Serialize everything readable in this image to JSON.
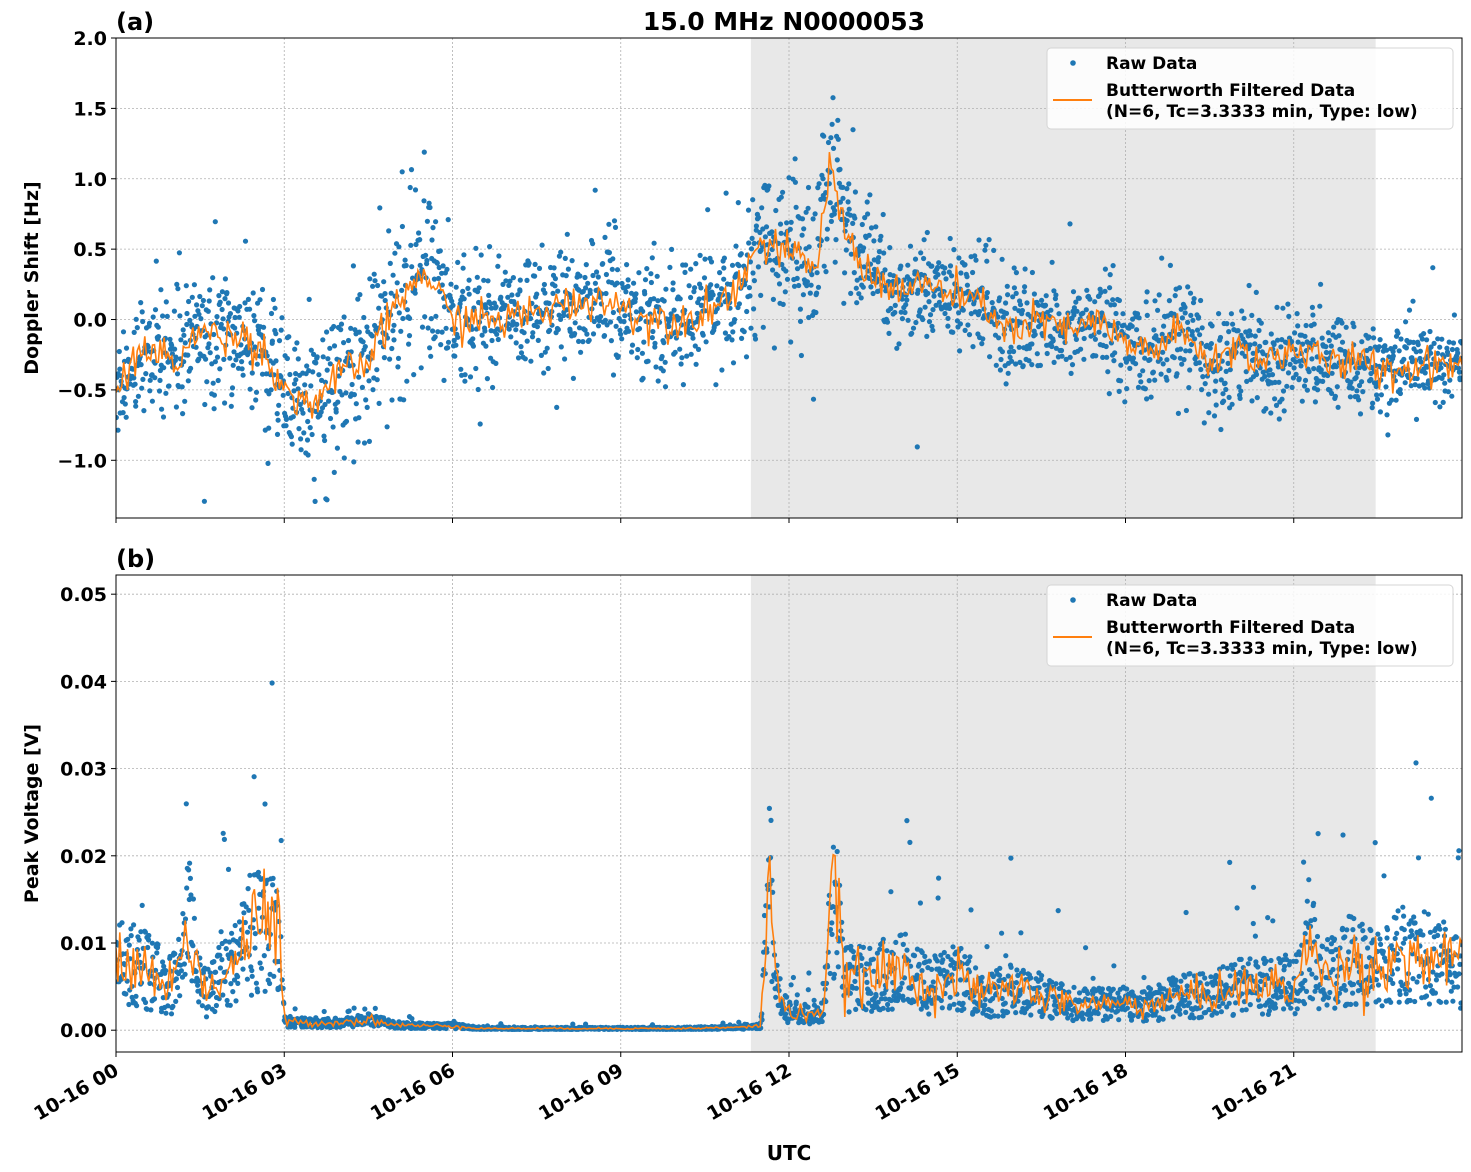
{
  "title": "15.0 MHz N0000053",
  "xlabel": "UTC",
  "colors": {
    "raw": "#1f77b4",
    "filtered": "#ff7f0e",
    "shade": "#e8e8e8",
    "grid": "#b0b0b0"
  },
  "chart_data": [
    {
      "type": "scatter+line",
      "panel_label": "(a)",
      "ylabel": "Doppler Shift [Hz]",
      "xlim_hours": [
        0,
        24
      ],
      "ylim": [
        -1.41,
        2.0
      ],
      "grid": true,
      "legend_placement": "upper-right",
      "legend": [
        "Raw Data",
        "Butterworth Filtered Data",
        "(N=6, Tc=3.3333 min, Type: low)"
      ],
      "xticks": [
        "10-16 00",
        "10-16 03",
        "10-16 06",
        "10-16 09",
        "10-16 12",
        "10-16 15",
        "10-16 18",
        "10-16 21"
      ],
      "xtick_hours": [
        0,
        3,
        6,
        9,
        12,
        15,
        18,
        21
      ],
      "yticks": [
        -1.0,
        -0.5,
        0.0,
        0.5,
        1.0,
        1.5,
        2.0
      ],
      "ytick_labels": [
        "−1.0",
        "−0.5",
        "0.0",
        "0.5",
        "1.0",
        "1.5",
        "2.0"
      ],
      "shaded_span_hours": [
        11.32,
        22.46
      ],
      "filtered": {
        "x_hours": [
          0,
          0.5,
          1,
          1.5,
          2,
          2.5,
          3,
          3.5,
          4,
          4.5,
          5,
          5.5,
          6,
          6.5,
          7,
          7.5,
          8,
          8.5,
          9,
          9.5,
          10,
          10.5,
          11,
          11.5,
          12,
          12.5,
          12.75,
          13,
          13.5,
          14,
          14.5,
          15,
          15.5,
          16,
          16.5,
          17,
          17.5,
          18,
          18.5,
          19,
          19.5,
          20,
          20.5,
          21,
          21.5,
          22,
          22.5,
          23,
          23.5,
          24
        ],
        "y": [
          -0.5,
          -0.2,
          -0.3,
          -0.1,
          -0.1,
          -0.15,
          -0.5,
          -0.6,
          -0.4,
          -0.3,
          0.1,
          0.35,
          0.0,
          0.0,
          0.0,
          0.05,
          0.1,
          0.15,
          0.1,
          0.0,
          0.0,
          0.05,
          0.2,
          0.55,
          0.45,
          0.4,
          1.1,
          0.6,
          0.3,
          0.2,
          0.25,
          0.15,
          0.1,
          -0.1,
          0.0,
          -0.1,
          0.0,
          -0.2,
          -0.2,
          -0.1,
          -0.3,
          -0.2,
          -0.3,
          -0.2,
          -0.3,
          -0.3,
          -0.35,
          -0.35,
          -0.3,
          -0.3
        ]
      },
      "raw_spread": {
        "x_hours": [
          0,
          3,
          4,
          5,
          5.5,
          6,
          11,
          11.5,
          12.75,
          13.5,
          18,
          18.5,
          19,
          24
        ],
        "half_width": [
          0.35,
          0.4,
          0.5,
          0.65,
          0.6,
          0.4,
          0.4,
          0.45,
          0.6,
          0.35,
          0.3,
          0.45,
          0.35,
          0.25
        ]
      }
    },
    {
      "type": "scatter+line",
      "panel_label": "(b)",
      "ylabel": "Peak Voltage [V]",
      "xlim_hours": [
        0,
        24
      ],
      "ylim": [
        -0.0025,
        0.0522
      ],
      "grid": true,
      "legend_placement": "upper-right",
      "legend": [
        "Raw Data",
        "Butterworth Filtered Data",
        "(N=6, Tc=3.3333 min, Type: low)"
      ],
      "xticks": [
        "10-16 00",
        "10-16 03",
        "10-16 06",
        "10-16 09",
        "10-16 12",
        "10-16 15",
        "10-16 18",
        "10-16 21"
      ],
      "xtick_hours": [
        0,
        3,
        6,
        9,
        12,
        15,
        18,
        21
      ],
      "yticks": [
        0.0,
        0.01,
        0.02,
        0.03,
        0.04,
        0.05
      ],
      "ytick_labels": [
        "0.00",
        "0.01",
        "0.02",
        "0.03",
        "0.04",
        "0.05"
      ],
      "shaded_span_hours": [
        11.32,
        22.46
      ],
      "filtered": {
        "x_hours": [
          0,
          0.5,
          1,
          1.3,
          1.6,
          2,
          2.5,
          2.9,
          3.0,
          3.5,
          4,
          4.5,
          5,
          5.5,
          6,
          6.5,
          7,
          8,
          9,
          10,
          11,
          11.5,
          11.65,
          11.8,
          12,
          12.3,
          12.6,
          12.8,
          13,
          13.5,
          14,
          14.5,
          15,
          15.5,
          16,
          16.5,
          17,
          17.5,
          18,
          18.5,
          19,
          19.5,
          20,
          20.5,
          21,
          21.3,
          21.5,
          22,
          22.5,
          23,
          23.5,
          24
        ],
        "y": [
          0.008,
          0.007,
          0.005,
          0.012,
          0.004,
          0.007,
          0.012,
          0.012,
          0.001,
          0.0008,
          0.0009,
          0.0012,
          0.0006,
          0.0005,
          0.0005,
          0.0002,
          0.0002,
          0.0002,
          0.0002,
          0.0002,
          0.0003,
          0.0005,
          0.02,
          0.004,
          0.002,
          0.002,
          0.002,
          0.016,
          0.006,
          0.006,
          0.007,
          0.005,
          0.006,
          0.004,
          0.005,
          0.004,
          0.003,
          0.003,
          0.003,
          0.003,
          0.004,
          0.004,
          0.005,
          0.005,
          0.005,
          0.01,
          0.006,
          0.008,
          0.007,
          0.009,
          0.008,
          0.007
        ]
      }
    }
  ]
}
